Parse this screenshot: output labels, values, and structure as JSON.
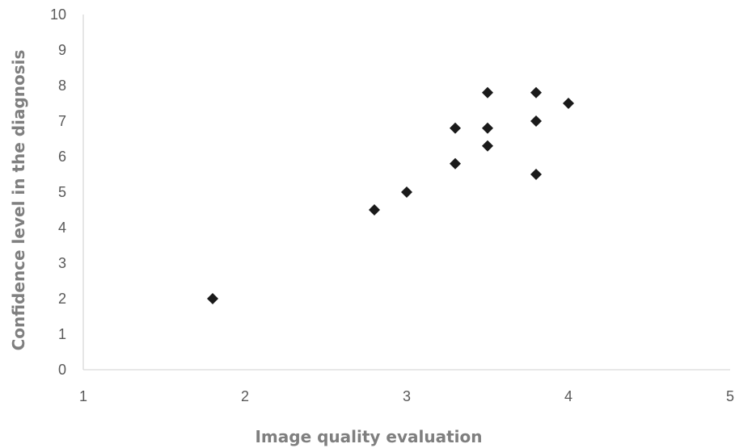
{
  "chart_data": {
    "type": "scatter",
    "xlabel": "Image quality evaluation",
    "ylabel": "Confidence level in the diagnosis",
    "xlim": [
      1,
      5
    ],
    "ylim": [
      0,
      10
    ],
    "xticks": [
      1,
      2,
      3,
      4,
      5
    ],
    "yticks": [
      0,
      1,
      2,
      3,
      4,
      5,
      6,
      7,
      8,
      9,
      10
    ],
    "grid": false,
    "legend": "none",
    "marker": "diamond",
    "marker_color": "#1a1a1a",
    "series": [
      {
        "points": [
          {
            "x": 1.8,
            "y": 2.0
          },
          {
            "x": 2.8,
            "y": 4.5
          },
          {
            "x": 3.0,
            "y": 5.0
          },
          {
            "x": 3.3,
            "y": 5.8
          },
          {
            "x": 3.3,
            "y": 6.8
          },
          {
            "x": 3.5,
            "y": 6.3
          },
          {
            "x": 3.5,
            "y": 6.8
          },
          {
            "x": 3.5,
            "y": 7.8
          },
          {
            "x": 3.8,
            "y": 5.5
          },
          {
            "x": 3.8,
            "y": 7.0
          },
          {
            "x": 3.8,
            "y": 7.8
          },
          {
            "x": 4.0,
            "y": 7.5
          }
        ]
      }
    ]
  }
}
